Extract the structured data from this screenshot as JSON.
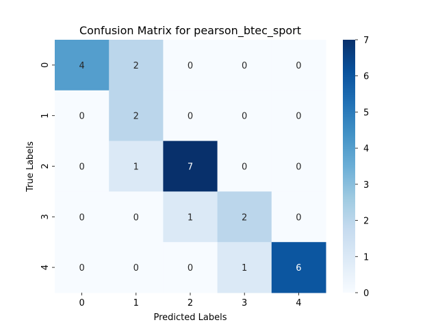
{
  "chart_data": {
    "type": "heatmap",
    "title": "Confusion Matrix for pearson_btec_sport",
    "xlabel": "Predicted Labels",
    "ylabel": "True Labels",
    "x_categories": [
      "0",
      "1",
      "2",
      "3",
      "4"
    ],
    "y_categories": [
      "0",
      "1",
      "2",
      "3",
      "4"
    ],
    "values": [
      [
        4,
        2,
        0,
        0,
        0
      ],
      [
        0,
        2,
        0,
        0,
        0
      ],
      [
        0,
        1,
        7,
        0,
        0
      ],
      [
        0,
        0,
        1,
        2,
        0
      ],
      [
        0,
        0,
        0,
        1,
        6
      ]
    ],
    "colormap": "Blues",
    "vmin": 0,
    "vmax": 7,
    "colorbar_ticks": [
      "0",
      "1",
      "2",
      "3",
      "4",
      "5",
      "6",
      "7"
    ],
    "annotated": true,
    "grid": false,
    "colorbar": "right"
  }
}
